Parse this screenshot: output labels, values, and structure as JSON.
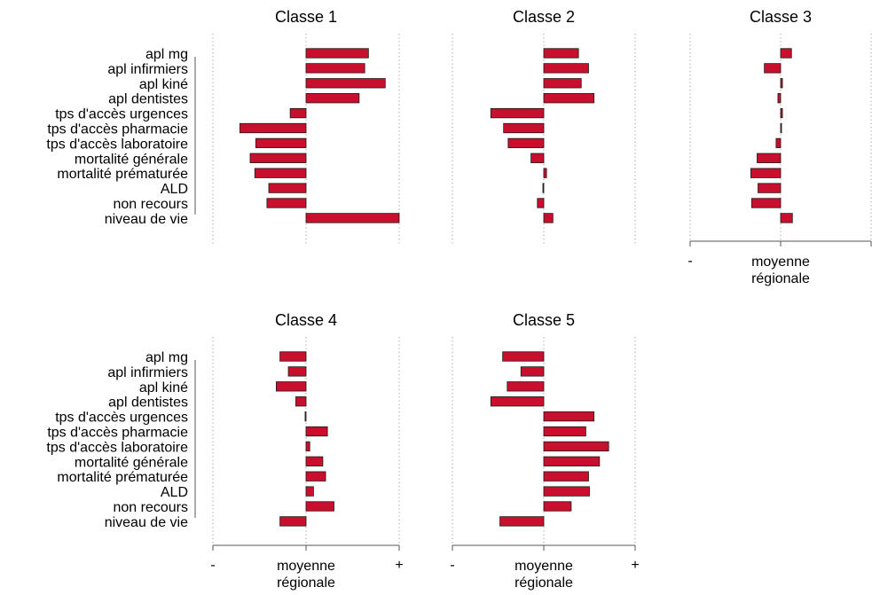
{
  "colors": {
    "bar": "#C8102E",
    "bar_stroke": "#1a1a1a",
    "grid": "#9a9a9a",
    "axis": "#555555"
  },
  "variables": [
    "apl mg",
    "apl infirmiers",
    "apl kiné",
    "apl dentistes",
    "tps d'accès urgences",
    "tps d'accès pharmacie",
    "tps d'accès laboratoire",
    "mortalité générale",
    "mortalité prématurée",
    "ALD",
    "non recours",
    "niveau de vie"
  ],
  "axis": {
    "minus": "-",
    "plus": "+",
    "center_line1": "moyenne",
    "center_line2": "régionale"
  },
  "chart_data": [
    {
      "type": "bar",
      "title": "Classe 1",
      "xlim": [
        -1,
        1
      ],
      "values": [
        0.67,
        0.63,
        0.85,
        0.57,
        -0.17,
        -0.71,
        -0.54,
        -0.6,
        -0.55,
        -0.4,
        -0.42,
        1.0
      ]
    },
    {
      "type": "bar",
      "title": "Classe 2",
      "xlim": [
        -1,
        1
      ],
      "values": [
        0.38,
        0.49,
        0.41,
        0.55,
        -0.58,
        -0.44,
        -0.39,
        -0.14,
        0.03,
        -0.01,
        -0.07,
        0.1
      ]
    },
    {
      "type": "bar",
      "title": "Classe 3",
      "xlim": [
        -1,
        1
      ],
      "values": [
        0.12,
        -0.18,
        0.02,
        -0.03,
        0.02,
        0.01,
        -0.05,
        -0.26,
        -0.33,
        -0.25,
        -0.32,
        0.13
      ]
    },
    {
      "type": "bar",
      "title": "Classe 4",
      "xlim": [
        -1,
        1
      ],
      "values": [
        -0.28,
        -0.19,
        -0.32,
        -0.11,
        -0.01,
        0.23,
        0.04,
        0.18,
        0.21,
        0.08,
        0.3,
        -0.28
      ]
    },
    {
      "type": "bar",
      "title": "Classe 5",
      "xlim": [
        -1,
        1
      ],
      "values": [
        -0.45,
        -0.25,
        -0.4,
        -0.58,
        0.55,
        0.46,
        0.71,
        0.61,
        0.49,
        0.5,
        0.3,
        -0.48
      ]
    }
  ]
}
